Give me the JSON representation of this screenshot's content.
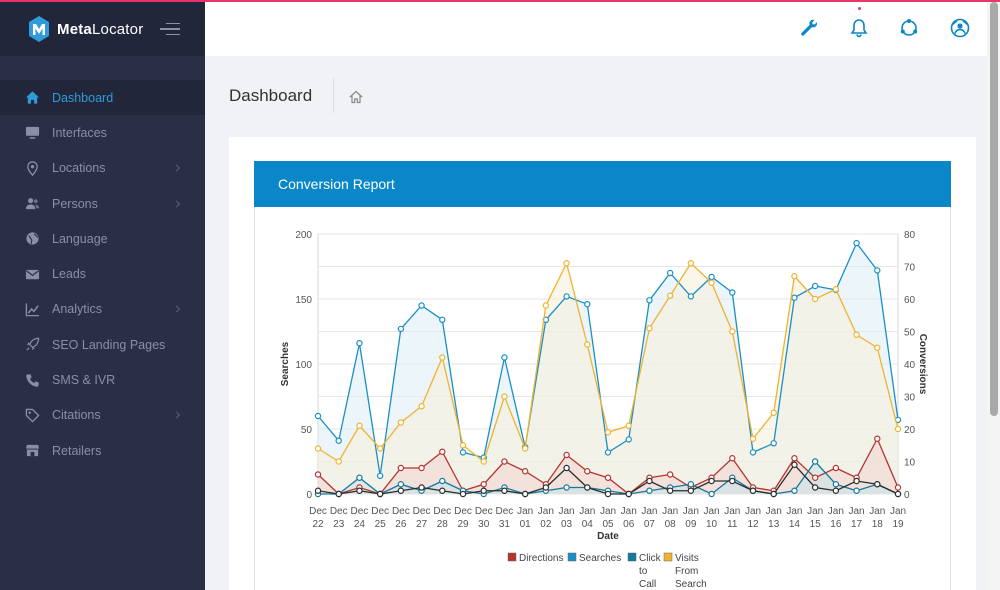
{
  "app": {
    "brand_bold": "Meta",
    "brand_regular": "Locator"
  },
  "sidebar": {
    "items": [
      {
        "label": "Dashboard",
        "icon": "home-icon",
        "active": true
      },
      {
        "label": "Interfaces",
        "icon": "monitor-icon"
      },
      {
        "label": "Locations",
        "icon": "map-pin-icon",
        "submenu": true
      },
      {
        "label": "Persons",
        "icon": "users-icon",
        "submenu": true
      },
      {
        "label": "Language",
        "icon": "globe-icon"
      },
      {
        "label": "Leads",
        "icon": "envelope-icon"
      },
      {
        "label": "Analytics",
        "icon": "trend-chart-icon",
        "submenu": true
      },
      {
        "label": "SEO Landing Pages",
        "icon": "rocket-icon"
      },
      {
        "label": "SMS & IVR",
        "icon": "phone-icon"
      },
      {
        "label": "Citations",
        "icon": "tag-icon",
        "submenu": true
      },
      {
        "label": "Retailers",
        "icon": "store-icon"
      }
    ]
  },
  "header": {
    "icons": [
      "wrench-icon",
      "bell-icon",
      "support-icon",
      "user-globe-icon"
    ]
  },
  "page": {
    "title": "Dashboard"
  },
  "report": {
    "title": "Conversion Report"
  },
  "colors": {
    "accent": "#0a87c8",
    "sidebar": "#2b2f45",
    "directions": "#b5342f",
    "searches": "#1a8fc6",
    "click_to_call": "#15789c",
    "visits": "#f0b32e"
  },
  "chart_data": {
    "type": "line",
    "xlabel": "Date",
    "ylabel": "Searches",
    "y2label": "Conversions",
    "ylim": [
      0,
      200
    ],
    "y2lim": [
      0,
      80
    ],
    "yticks": [
      "0",
      "50",
      "100",
      "150",
      "200"
    ],
    "y2ticks": [
      "0",
      "10",
      "20",
      "30",
      "40",
      "50",
      "60",
      "70",
      "80"
    ],
    "categories": [
      "Dec 22",
      "Dec 23",
      "Dec 24",
      "Dec 25",
      "Dec 26",
      "Dec 27",
      "Dec 28",
      "Dec 29",
      "Dec 30",
      "Dec 31",
      "Jan 01",
      "Jan 02",
      "Jan 03",
      "Jan 04",
      "Jan 05",
      "Jan 06",
      "Jan 07",
      "Jan 08",
      "Jan 09",
      "Jan 10",
      "Jan 11",
      "Jan 12",
      "Jan 13",
      "Jan 14",
      "Jan 15",
      "Jan 16",
      "Jan 17",
      "Jan 18",
      "Jan 19"
    ],
    "grid": true,
    "legend_position": "bottom",
    "series": [
      {
        "name": "Directions",
        "axis": "right",
        "color": "#b5342f",
        "fill": "#f3d5d0",
        "values": [
          6,
          0,
          2,
          0,
          8,
          8,
          13,
          1,
          3,
          10,
          7,
          3,
          12,
          7,
          5,
          0,
          5,
          6,
          2,
          5,
          11,
          2,
          1,
          11,
          5,
          8,
          5,
          17,
          2
        ]
      },
      {
        "name": "Searches",
        "axis": "left",
        "color": "#1a8fc6",
        "fill": "#dcecf5",
        "values": [
          60,
          41,
          116,
          14,
          127,
          145,
          134,
          32,
          28,
          105,
          36,
          134,
          152,
          146,
          32,
          42,
          149,
          170,
          152,
          167,
          155,
          32,
          39,
          151,
          160,
          157,
          193,
          172,
          57
        ]
      },
      {
        "name": "Click to Call",
        "axis": "right",
        "color": "#15789c",
        "fill": "#c9e1ea",
        "values": [
          0,
          0,
          5,
          0,
          3,
          1,
          4,
          1,
          0,
          2,
          0,
          1,
          2,
          2,
          1,
          0,
          1,
          2,
          3,
          0,
          5,
          1,
          0,
          1,
          10,
          3,
          1,
          3,
          0
        ]
      },
      {
        "name": "Visits From Search",
        "axis": "right",
        "color": "#f0b32e",
        "fill": "#f8efd9",
        "values": [
          14,
          10,
          21,
          14,
          22,
          27,
          42,
          15,
          10,
          30,
          14,
          58,
          71,
          46,
          19,
          21,
          51,
          61,
          71,
          65,
          50,
          17,
          25,
          67,
          60,
          63,
          49,
          45,
          20
        ]
      },
      {
        "name": "",
        "axis": "right",
        "color": "#2a2e2c",
        "fill": "none",
        "values": [
          1,
          0,
          1,
          0,
          1,
          2,
          1,
          0,
          1,
          1,
          0,
          2,
          8,
          2,
          0,
          0,
          4,
          1,
          1,
          4,
          4,
          1,
          0,
          9,
          2,
          1,
          4,
          3,
          0
        ]
      }
    ]
  }
}
